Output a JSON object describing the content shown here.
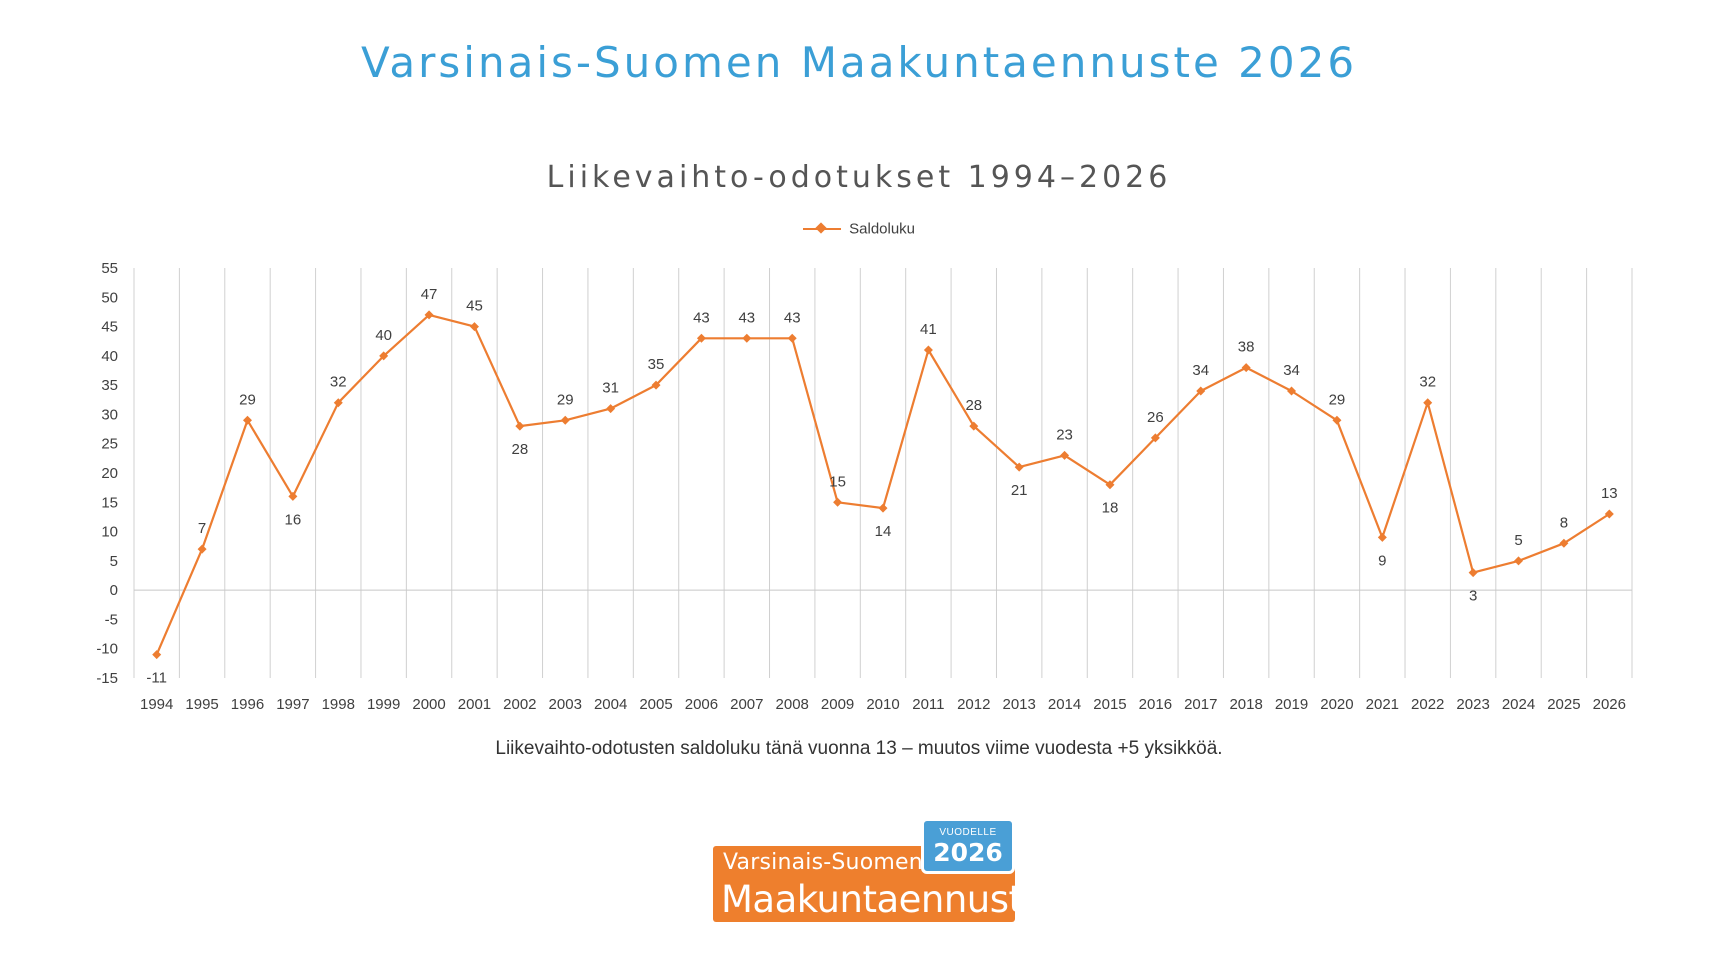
{
  "page": {
    "title": "Varsinais-Suomen Maakuntaennuste 2026",
    "caption": "Liikevaihto-odotusten saldoluku tänä vuonna 13 – muutos viime vuodesta +5 yksikköä."
  },
  "logo": {
    "line1": "Varsinais-Suomen",
    "line2": "Maakuntaennuste",
    "badge_small": "VUODELLE",
    "badge_year": "2026",
    "color_main": "#ee7f2d",
    "color_badge": "#4a9fd6"
  },
  "chart_data": {
    "type": "line",
    "title": "Liikevaihto-odotukset 1994–2026",
    "xlabel": "",
    "ylabel": "",
    "categories": [
      "1994",
      "1995",
      "1996",
      "1997",
      "1998",
      "1999",
      "2000",
      "2001",
      "2002",
      "2003",
      "2004",
      "2005",
      "2006",
      "2007",
      "2008",
      "2009",
      "2010",
      "2011",
      "2012",
      "2013",
      "2014",
      "2015",
      "2016",
      "2017",
      "2018",
      "2019",
      "2020",
      "2021",
      "2022",
      "2023",
      "2024",
      "2025",
      "2026"
    ],
    "series": [
      {
        "name": "Saldoluku",
        "color": "#ed7d31",
        "values": [
          -11,
          7,
          29,
          16,
          32,
          40,
          47,
          45,
          28,
          29,
          31,
          35,
          43,
          43,
          43,
          15,
          14,
          41,
          28,
          21,
          23,
          18,
          26,
          34,
          38,
          34,
          29,
          9,
          32,
          3,
          5,
          8,
          13
        ]
      }
    ],
    "ylim": [
      -15,
      55
    ],
    "yticks": [
      55,
      50,
      45,
      40,
      35,
      30,
      25,
      20,
      15,
      10,
      5,
      0,
      -5,
      -10,
      -15
    ],
    "vertical_gridlines": true,
    "legend_position": "top-center",
    "data_labels": true
  }
}
